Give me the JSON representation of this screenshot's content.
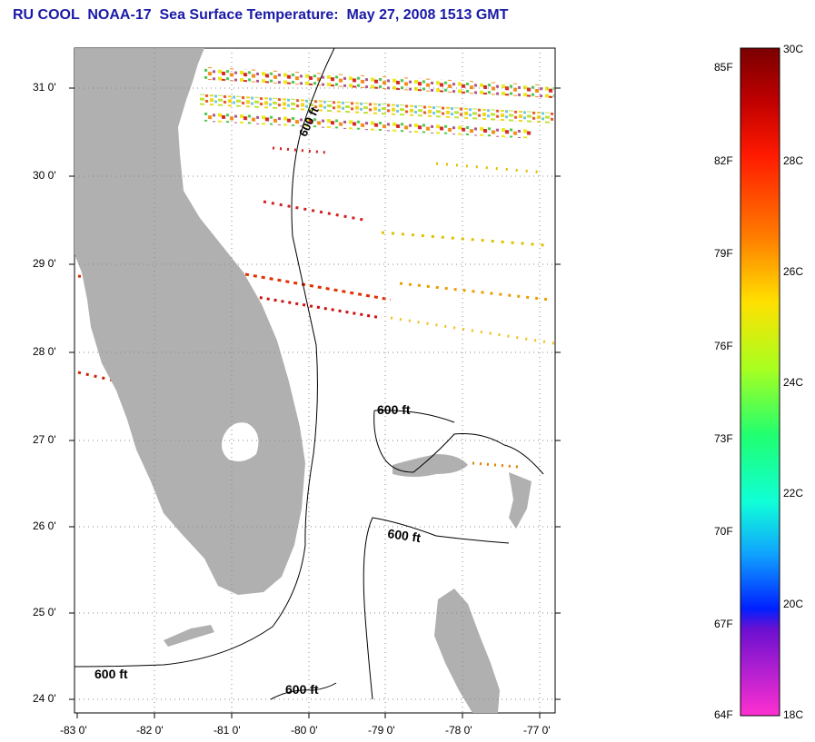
{
  "title": "RU COOL  NOAA-17  Sea Surface Temperature:  May 27, 2008 1513 GMT",
  "map": {
    "lat_labels": [
      "31 0'",
      "30 0'",
      "29 0'",
      "28 0'",
      "27 0'",
      "26 0'",
      "25 0'",
      "24 0'"
    ],
    "lon_labels": [
      "-83 0'",
      "-82 0'",
      "-81 0'",
      "-80 0'",
      "-79 0'",
      "-78 0'",
      "-77 0'"
    ],
    "contour_label": "600 ft",
    "land_color": "#b0b0b0",
    "grid": "dotted"
  },
  "colorbar": {
    "fahrenheit_labels": [
      "85F",
      "82F",
      "79F",
      "76F",
      "73F",
      "70F",
      "67F",
      "64F"
    ],
    "celsius_labels": [
      "30C",
      "28C",
      "26C",
      "24C",
      "22C",
      "20C",
      "18C"
    ],
    "range_c": [
      18,
      30
    ]
  }
}
